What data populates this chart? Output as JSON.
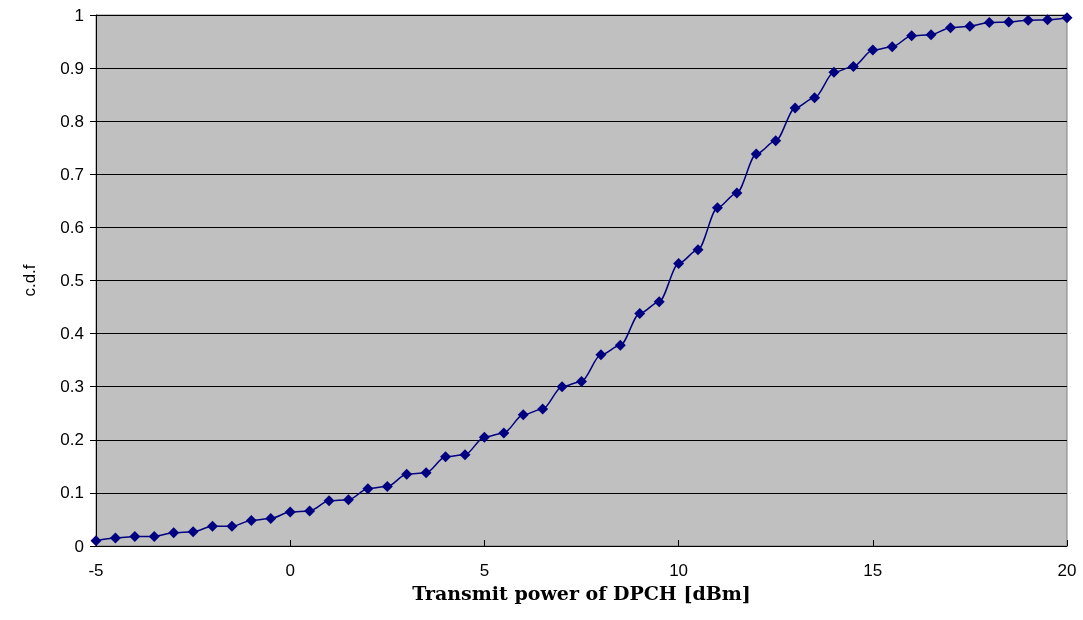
{
  "chart_data": {
    "type": "line",
    "xlabel": "Transmit power of DPCH [dBm]",
    "ylabel": "c.d.f",
    "x": [
      -5,
      -4.5,
      -4,
      -3.5,
      -3,
      -2.5,
      -2,
      -1.5,
      -1,
      -0.5,
      0,
      0.5,
      1,
      1.5,
      2,
      2.5,
      3,
      3.5,
      4,
      4.5,
      5,
      5.5,
      6,
      6.5,
      7,
      7.5,
      8,
      8.5,
      9,
      9.5,
      10,
      10.5,
      11,
      11.5,
      12,
      12.5,
      13,
      13.5,
      14,
      14.5,
      15,
      15.5,
      16,
      16.5,
      17,
      17.5,
      18,
      18.5,
      19,
      19.5,
      20
    ],
    "series": [
      {
        "color": "#000080",
        "values": [
          0.01,
          0.015,
          0.018,
          0.018,
          0.025,
          0.027,
          0.037,
          0.037,
          0.048,
          0.052,
          0.064,
          0.066,
          0.085,
          0.087,
          0.108,
          0.112,
          0.135,
          0.138,
          0.168,
          0.172,
          0.205,
          0.213,
          0.247,
          0.258,
          0.3,
          0.31,
          0.36,
          0.378,
          0.438,
          0.46,
          0.532,
          0.558,
          0.637,
          0.665,
          0.738,
          0.763,
          0.825,
          0.844,
          0.892,
          0.903,
          0.934,
          0.94,
          0.961,
          0.963,
          0.976,
          0.979,
          0.986,
          0.987,
          0.99,
          0.991,
          0.995
        ]
      }
    ],
    "xlim": [
      -5,
      20
    ],
    "xticks": [
      -5,
      0,
      5,
      10,
      15,
      20
    ],
    "ylim": [
      0,
      1
    ],
    "yticks": [
      0,
      0.1,
      0.2,
      0.3,
      0.4,
      0.5,
      0.6,
      0.7,
      0.8,
      0.9,
      1
    ],
    "grid": "y",
    "marker": "diamond",
    "line_style": "solid"
  }
}
